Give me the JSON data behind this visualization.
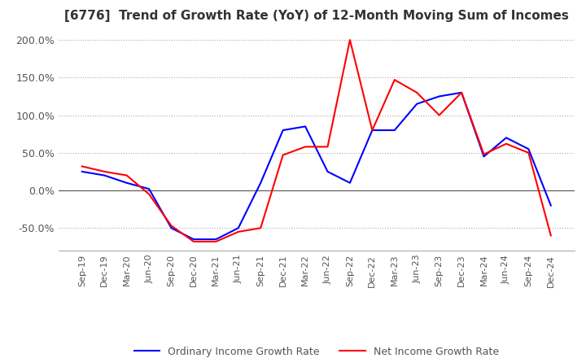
{
  "title": "[6776]  Trend of Growth Rate (YoY) of 12-Month Moving Sum of Incomes",
  "ylim": [
    -80,
    215
  ],
  "yticks": [
    -50,
    0,
    50,
    100,
    150,
    200
  ],
  "ytick_labels": [
    "-50.0%",
    "0.0%",
    "50.0%",
    "100.0%",
    "150.0%",
    "200.0%"
  ],
  "legend_labels": [
    "Ordinary Income Growth Rate",
    "Net Income Growth Rate"
  ],
  "line_colors": [
    "blue",
    "red"
  ],
  "background_color": "#ffffff",
  "grid_color": "#aaaaaa",
  "x_labels": [
    "Sep-19",
    "Dec-19",
    "Mar-20",
    "Jun-20",
    "Sep-20",
    "Dec-20",
    "Mar-21",
    "Jun-21",
    "Sep-21",
    "Dec-21",
    "Mar-22",
    "Jun-22",
    "Sep-22",
    "Dec-22",
    "Mar-23",
    "Jun-23",
    "Sep-23",
    "Dec-23",
    "Mar-24",
    "Jun-24",
    "Sep-24",
    "Dec-24"
  ],
  "ordinary_income": [
    25,
    20,
    10,
    2,
    -50,
    -65,
    -65,
    -50,
    10,
    80,
    85,
    25,
    10,
    80,
    80,
    115,
    125,
    130,
    45,
    70,
    55,
    -20
  ],
  "net_income": [
    32,
    25,
    20,
    -5,
    -47,
    -68,
    -68,
    -55,
    -50,
    47,
    58,
    58,
    200,
    80,
    147,
    130,
    100,
    130,
    48,
    62,
    50,
    -60
  ]
}
